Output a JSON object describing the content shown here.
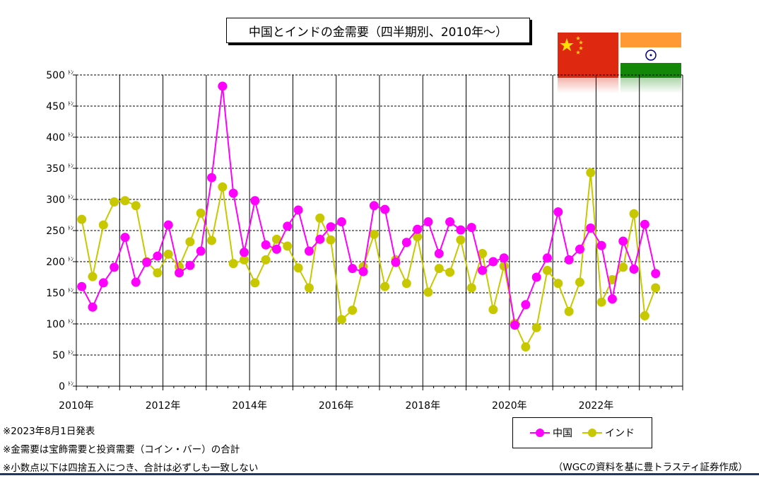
{
  "title": "中国とインドの金需要（四半期別、2010年～）",
  "flags": {
    "china": "china-flag-icon",
    "india": "india-flag-icon"
  },
  "colors": {
    "china": "#ff00ff",
    "india": "#c8c800",
    "grid": "#000000"
  },
  "notes": [
    "※2023年8月1日発表",
    "※金需要は宝飾需要と投資需要（コイン・バー）の合計",
    "※小数点以下は四捨五入につき、合計は必ずしも一致しない"
  ],
  "source": "（WGCの資料を基に豊トラスティ証券作成）",
  "chart_data": {
    "type": "line",
    "title": "中国とインドの金需要（四半期別、2010年～）",
    "ylim": [
      0,
      500
    ],
    "ytick_step": 50,
    "y_unit": "ﾄﾝ",
    "x_start_year": 2010,
    "x_year_ticks": [
      "2010年",
      "2012年",
      "2014年",
      "2016年",
      "2018年",
      "2020年",
      "2022年"
    ],
    "grid": true,
    "legend_position": "bottom-right",
    "series": [
      {
        "name": "中国",
        "color": "#ff00ff",
        "values": [
          160,
          127,
          166,
          191,
          239,
          167,
          199,
          209,
          259,
          182,
          194,
          217,
          335,
          482,
          310,
          215,
          298,
          227,
          220,
          257,
          283,
          217,
          236,
          256,
          264,
          189,
          184,
          290,
          284,
          199,
          231,
          252,
          264,
          213,
          264,
          251,
          255,
          186,
          200,
          206,
          98,
          131,
          175,
          206,
          280,
          203,
          220,
          254,
          226,
          140,
          233,
          188,
          260,
          181
        ]
      },
      {
        "name": "インド",
        "color": "#c8c800",
        "values": [
          268,
          176,
          259,
          296,
          298,
          290,
          200,
          182,
          212,
          192,
          232,
          278,
          234,
          320,
          197,
          203,
          166,
          203,
          236,
          225,
          190,
          158,
          270,
          235,
          107,
          122,
          192,
          244,
          160,
          203,
          165,
          240,
          151,
          189,
          183,
          235,
          158,
          213,
          123,
          193,
          101,
          63,
          94,
          186,
          165,
          120,
          167,
          343,
          135,
          171,
          191,
          277,
          113,
          158
        ]
      }
    ]
  }
}
